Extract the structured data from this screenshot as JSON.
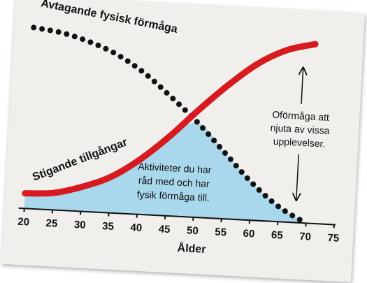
{
  "chart_data": {
    "type": "line",
    "x_label": "Ålder",
    "x": [
      20,
      25,
      30,
      35,
      40,
      45,
      50,
      55,
      60,
      65,
      70
    ],
    "series": [
      {
        "name": "Avtagande fysisk förmåga",
        "color": "#111111",
        "style": "dotted",
        "values": [
          96,
          94,
          90,
          84,
          75,
          63,
          50,
          35,
          20,
          8,
          0
        ]
      },
      {
        "name": "Stigande tillgångar",
        "color": "#d71920",
        "style": "solid",
        "values": [
          8,
          9,
          13,
          19,
          29,
          42,
          57,
          71,
          83,
          91,
          95
        ]
      }
    ],
    "area_color": "#a9d8ec",
    "xlim": [
      19,
      77
    ],
    "xticks": [
      20,
      25,
      30,
      35,
      40,
      45,
      50,
      55,
      60,
      65,
      70,
      75
    ],
    "ylim": [
      0,
      100
    ],
    "annotations": [
      [
        "Oförmåga att",
        "njuta av vissa",
        "upplevelser."
      ],
      [
        "Aktiviteter du har",
        "råd med och har",
        "fysik förmåga till."
      ]
    ]
  }
}
